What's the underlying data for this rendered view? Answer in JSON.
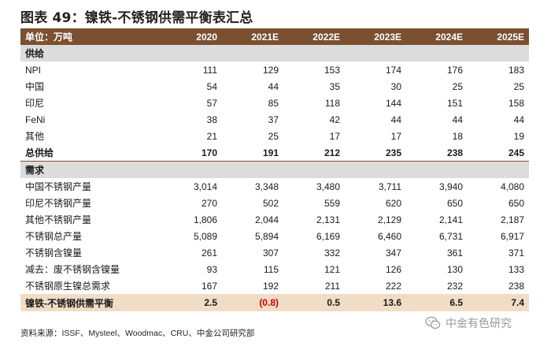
{
  "title": "图表 49：镍铁-不锈钢供需平衡表汇总",
  "header": {
    "unit": "单位：万吨",
    "years": [
      "2020",
      "2021E",
      "2022E",
      "2023E",
      "2024E",
      "2025E"
    ]
  },
  "sections": {
    "supply": "供给",
    "demand": "需求"
  },
  "rows": {
    "npi": {
      "label": "NPI",
      "values": [
        "111",
        "129",
        "153",
        "174",
        "176",
        "183"
      ]
    },
    "china": {
      "label": "中国",
      "values": [
        "54",
        "44",
        "35",
        "30",
        "25",
        "25"
      ]
    },
    "indonesia": {
      "label": "印尼",
      "values": [
        "57",
        "85",
        "118",
        "144",
        "151",
        "158"
      ]
    },
    "feni": {
      "label": "FeNi",
      "values": [
        "38",
        "37",
        "42",
        "44",
        "44",
        "44"
      ]
    },
    "other": {
      "label": "其他",
      "values": [
        "21",
        "25",
        "17",
        "17",
        "18",
        "19"
      ]
    },
    "total_supply": {
      "label": "总供给",
      "values": [
        "170",
        "191",
        "212",
        "235",
        "238",
        "245"
      ]
    },
    "china_ss": {
      "label": "中国不锈钢产量",
      "values": [
        "3,014",
        "3,348",
        "3,480",
        "3,711",
        "3,940",
        "4,080"
      ]
    },
    "indo_ss": {
      "label": "印尼不锈钢产量",
      "values": [
        "270",
        "502",
        "559",
        "620",
        "650",
        "650"
      ]
    },
    "other_ss": {
      "label": "其他不锈钢产量",
      "values": [
        "1,806",
        "2,044",
        "2,131",
        "2,129",
        "2,141",
        "2,187"
      ]
    },
    "total_ss": {
      "label": "不锈钢总产量",
      "values": [
        "5,089",
        "5,894",
        "6,169",
        "6,460",
        "6,731",
        "6,917"
      ]
    },
    "ss_nickel": {
      "label": "不锈钢含镍量",
      "values": [
        "261",
        "307",
        "332",
        "347",
        "361",
        "371"
      ]
    },
    "scrap_nickel": {
      "label": "减去：废不锈钢含镍量",
      "values": [
        "93",
        "115",
        "121",
        "126",
        "130",
        "133"
      ]
    },
    "primary_nickel": {
      "label": "不锈钢原生镍总需求",
      "values": [
        "167",
        "192",
        "211",
        "222",
        "232",
        "238"
      ]
    },
    "balance": {
      "label": "镍铁-不锈钢供需平衡",
      "values": [
        "2.5",
        "(0.8)",
        "0.5",
        "13.6",
        "6.5",
        "7.4"
      ]
    }
  },
  "colors": {
    "header_bg": "#7a5031",
    "section_bg": "#dcdcdc",
    "balance_bg": "#f1ddc6",
    "negative": "#d00000"
  },
  "source": "资料来源：ISSF、Mysteel、Woodmac、CRU、中金公司研究部",
  "watermark": {
    "icon": "wechat-icon",
    "text": "中金有色研究"
  }
}
